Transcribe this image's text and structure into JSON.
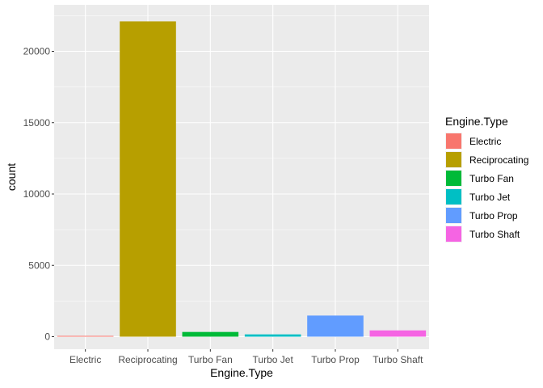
{
  "chart_data": {
    "type": "bar",
    "xlabel": "Engine.Type",
    "ylabel": "count",
    "categories": [
      "Electric",
      "Reciprocating",
      "Turbo Fan",
      "Turbo Jet",
      "Turbo Prop",
      "Turbo Shaft"
    ],
    "values": [
      30,
      22100,
      330,
      160,
      1480,
      440
    ],
    "ylim": [
      0,
      22100
    ],
    "yticks": [
      0,
      5000,
      10000,
      15000,
      20000
    ],
    "ytick_labels": [
      "0",
      "5000",
      "10000",
      "15000",
      "20000"
    ],
    "colors": [
      "#F8766D",
      "#B79F00",
      "#00BA38",
      "#00BFC4",
      "#619CFF",
      "#F564E3"
    ],
    "grid": true,
    "panel_background": "#EBEBEB",
    "legend": {
      "title": "Engine.Type",
      "position": "right",
      "entries": [
        "Electric",
        "Reciprocating",
        "Turbo Fan",
        "Turbo Jet",
        "Turbo Prop",
        "Turbo Shaft"
      ]
    }
  }
}
